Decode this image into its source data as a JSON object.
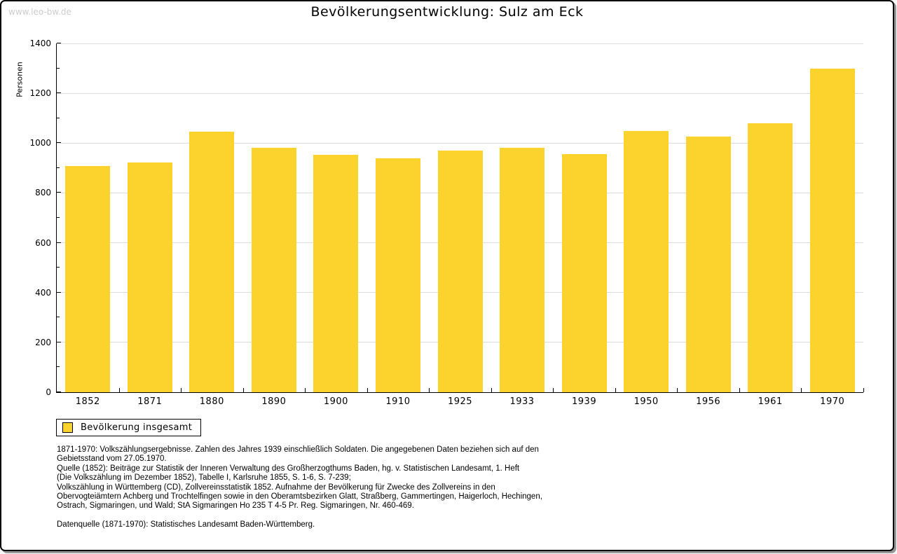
{
  "watermark": "www.leo-bw.de",
  "legend": {
    "label": "Bevölkerung insgesamt",
    "swatch_color": "#fcd32d"
  },
  "chart_data": {
    "type": "bar",
    "title": "Bevölkerungsentwicklung: Sulz am Eck",
    "xlabel": "",
    "ylabel": "Personen",
    "categories": [
      "1852",
      "1871",
      "1880",
      "1890",
      "1900",
      "1910",
      "1925",
      "1933",
      "1939",
      "1950",
      "1956",
      "1961",
      "1970"
    ],
    "values": [
      908,
      922,
      1046,
      982,
      952,
      938,
      970,
      982,
      955,
      1048,
      1027,
      1080,
      1298
    ],
    "series_name": "Bevölkerung insgesamt",
    "ylim": [
      0,
      1400
    ],
    "ytick_step": 200,
    "yminor_step": 100,
    "grid": true,
    "bar_color": "#fcd32d",
    "grid_color": "#dcdcdc",
    "legend_position": "bottom-left"
  },
  "notes": {
    "lines": [
      "1871-1970: Volkszählungsergebnisse. Zahlen des Jahres 1939 einschließlich Soldaten. Die angegebenen Daten beziehen sich auf den",
      "Gebietsstand vom 27.05.1970.",
      "Quelle (1852): Beiträge zur Statistik der Inneren Verwaltung des Großherzogthums Baden, hg. v. Statistischen Landesamt, 1. Heft",
      "(Die Volkszählung im Dezember 1852), Tabelle I, Karlsruhe 1855, S. 1-6, S. 7-239;",
      "Volkszählung in Württemberg (CD), Zollvereinsstatistik 1852. Aufnahme der Bevölkerung für Zwecke des Zollvereins in den",
      "Obervogteiämtern Achberg und Trochtelfingen sowie in den Oberamtsbezirken Glatt, Straßberg, Gammertingen, Haigerloch, Hechingen,",
      "Ostrach, Sigmaringen, und Wald; StA Sigmaringen Ho 235 T 4-5 Pr. Reg. Sigmaringen, Nr. 460-469.",
      "",
      "Datenquelle (1871-1970): Statistisches Landesamt Baden-Württemberg."
    ]
  }
}
